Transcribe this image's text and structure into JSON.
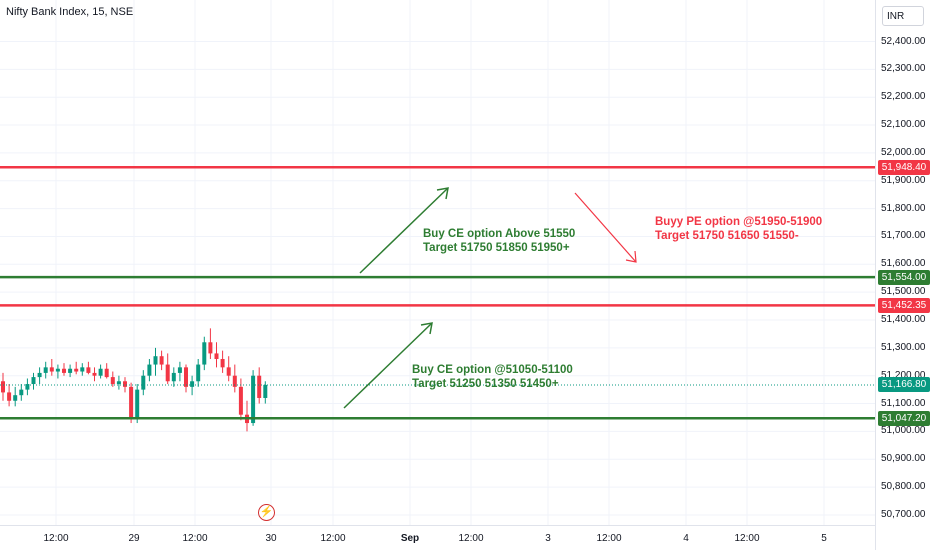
{
  "symbol_title": "Nifty Bank Index, 15, NSE",
  "currency": "INR",
  "price_ticks": [
    "52,400.00",
    "52,300.00",
    "52,200.00",
    "52,100.00",
    "52,000.00",
    "51,900.00",
    "51,800.00",
    "51,700.00",
    "51,600.00",
    "51,500.00",
    "51,400.00",
    "51,300.00",
    "51,200.00",
    "51,100.00",
    "51,000.00",
    "50,900.00",
    "50,800.00",
    "50,700.00"
  ],
  "time_labels": [
    "12:00",
    "29",
    "12:00",
    "30",
    "12:00",
    "Sep",
    "12:00",
    "3",
    "12:00",
    "4",
    "12:00",
    "5"
  ],
  "levels": [
    {
      "label": "51,948.40",
      "color": "#f23645",
      "kind": "line"
    },
    {
      "label": "51,554.00",
      "color": "#2e7d32",
      "kind": "line"
    },
    {
      "label": "51,452.35",
      "color": "#f23645",
      "kind": "line"
    },
    {
      "label": "51,166.80",
      "color": "#089981",
      "kind": "last"
    },
    {
      "label": "51,047.20",
      "color": "#2e7d32",
      "kind": "line"
    }
  ],
  "annotations": {
    "ce_upper": {
      "line1": "Buy CE option Above 51550",
      "line2": "Target 51750 51850 51950+",
      "color": "#2e7d32"
    },
    "pe": {
      "line1": "Buyy PE option @51950-51900",
      "line2": "Target 51750 51650 51550-",
      "color": "#f23645"
    },
    "ce_lower": {
      "line1": "Buy CE option @51050-51100",
      "line2": "Target 51250 51350 51450+",
      "color": "#2e7d32"
    }
  },
  "candles": [
    {
      "o": 51180,
      "h": 51210,
      "l": 51110,
      "c": 51140
    },
    {
      "o": 51140,
      "h": 51170,
      "l": 51090,
      "c": 51110
    },
    {
      "o": 51110,
      "h": 51160,
      "l": 51090,
      "c": 51130
    },
    {
      "o": 51130,
      "h": 51170,
      "l": 51110,
      "c": 51150
    },
    {
      "o": 51150,
      "h": 51190,
      "l": 51130,
      "c": 51170
    },
    {
      "o": 51170,
      "h": 51210,
      "l": 51150,
      "c": 51195
    },
    {
      "o": 51195,
      "h": 51230,
      "l": 51170,
      "c": 51210
    },
    {
      "o": 51210,
      "h": 51250,
      "l": 51190,
      "c": 51230
    },
    {
      "o": 51230,
      "h": 51260,
      "l": 51200,
      "c": 51215
    },
    {
      "o": 51215,
      "h": 51240,
      "l": 51190,
      "c": 51225
    },
    {
      "o": 51225,
      "h": 51245,
      "l": 51200,
      "c": 51210
    },
    {
      "o": 51210,
      "h": 51240,
      "l": 51195,
      "c": 51225
    },
    {
      "o": 51225,
      "h": 51250,
      "l": 51205,
      "c": 51215
    },
    {
      "o": 51215,
      "h": 51245,
      "l": 51200,
      "c": 51230
    },
    {
      "o": 51230,
      "h": 51250,
      "l": 51205,
      "c": 51210
    },
    {
      "o": 51210,
      "h": 51230,
      "l": 51180,
      "c": 51200
    },
    {
      "o": 51200,
      "h": 51240,
      "l": 51190,
      "c": 51225
    },
    {
      "o": 51225,
      "h": 51245,
      "l": 51190,
      "c": 51195
    },
    {
      "o": 51195,
      "h": 51215,
      "l": 51160,
      "c": 51170
    },
    {
      "o": 51170,
      "h": 51200,
      "l": 51150,
      "c": 51180
    },
    {
      "o": 51180,
      "h": 51195,
      "l": 51140,
      "c": 51160
    },
    {
      "o": 51160,
      "h": 51175,
      "l": 51030,
      "c": 51050
    },
    {
      "o": 51050,
      "h": 51170,
      "l": 51030,
      "c": 51150
    },
    {
      "o": 51150,
      "h": 51220,
      "l": 51130,
      "c": 51200
    },
    {
      "o": 51200,
      "h": 51260,
      "l": 51180,
      "c": 51240
    },
    {
      "o": 51240,
      "h": 51300,
      "l": 51200,
      "c": 51270
    },
    {
      "o": 51270,
      "h": 51290,
      "l": 51220,
      "c": 51240
    },
    {
      "o": 51240,
      "h": 51280,
      "l": 51170,
      "c": 51180
    },
    {
      "o": 51180,
      "h": 51230,
      "l": 51160,
      "c": 51210
    },
    {
      "o": 51210,
      "h": 51250,
      "l": 51180,
      "c": 51230
    },
    {
      "o": 51230,
      "h": 51240,
      "l": 51140,
      "c": 51160
    },
    {
      "o": 51160,
      "h": 51200,
      "l": 51130,
      "c": 51180
    },
    {
      "o": 51180,
      "h": 51260,
      "l": 51160,
      "c": 51240
    },
    {
      "o": 51240,
      "h": 51340,
      "l": 51220,
      "c": 51320
    },
    {
      "o": 51320,
      "h": 51370,
      "l": 51260,
      "c": 51280
    },
    {
      "o": 51280,
      "h": 51320,
      "l": 51230,
      "c": 51260
    },
    {
      "o": 51260,
      "h": 51290,
      "l": 51210,
      "c": 51230
    },
    {
      "o": 51230,
      "h": 51270,
      "l": 51180,
      "c": 51200
    },
    {
      "o": 51200,
      "h": 51240,
      "l": 51140,
      "c": 51160
    },
    {
      "o": 51160,
      "h": 51190,
      "l": 51040,
      "c": 51060
    },
    {
      "o": 51060,
      "h": 51110,
      "l": 51000,
      "c": 51030
    },
    {
      "o": 51030,
      "h": 51220,
      "l": 51020,
      "c": 51200
    },
    {
      "o": 51200,
      "h": 51230,
      "l": 51100,
      "c": 51120
    },
    {
      "o": 51120,
      "h": 51180,
      "l": 51100,
      "c": 51167
    }
  ]
}
